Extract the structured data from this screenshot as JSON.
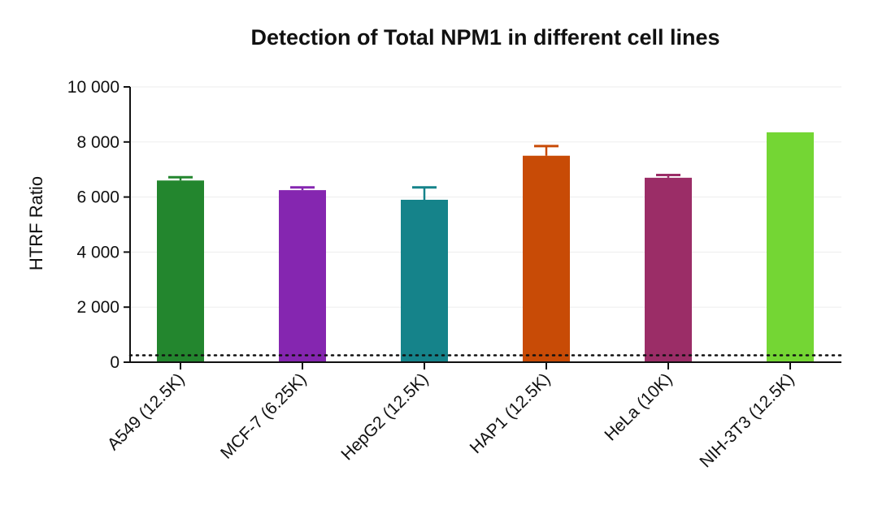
{
  "chart_data": {
    "type": "bar",
    "title": "Detection of Total NPM1 in different cell lines",
    "xlabel": "",
    "ylabel": "HTRF Ratio",
    "ylim": [
      0,
      10000
    ],
    "yticks": [
      0,
      2000,
      4000,
      6000,
      8000,
      10000
    ],
    "ytick_labels": [
      "0",
      "2 000",
      "4 000",
      "6 000",
      "8 000",
      "10 000"
    ],
    "grid": true,
    "categories": [
      "A549 (12.5K)",
      "MCF-7 (6.25K)",
      "HepG2 (12.5K)",
      "HAP1 (12.5K)",
      "HeLa (10K)",
      "NIH-3T3 (12.5K)"
    ],
    "values": [
      6600,
      6250,
      5900,
      7500,
      6700,
      8350
    ],
    "errors": [
      120,
      100,
      450,
      350,
      100,
      0
    ],
    "colors": [
      "#23862e",
      "#8526b0",
      "#15838a",
      "#c84b06",
      "#9b2d67",
      "#74d634"
    ],
    "reference_line": {
      "value": 250,
      "style": "dotted",
      "color": "#111111"
    }
  }
}
